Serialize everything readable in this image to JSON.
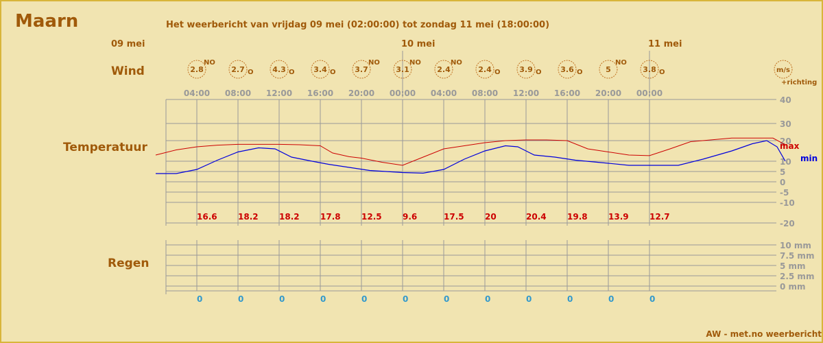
{
  "header": {
    "city": "Maarn",
    "subtitle": "Het weerbericht van vrijdag 09 mei (02:00:00) tot zondag 11 mei (18:00:00)",
    "credit": "AW - met.no weerbericht"
  },
  "dates": [
    {
      "label": "09 mei",
      "slot": -1
    },
    {
      "label": "10 mei",
      "slot": 5
    },
    {
      "label": "11 mei",
      "slot": 11
    }
  ],
  "row_labels": {
    "wind": "Wind",
    "temperature": "Temperatuur",
    "rain": "Regen"
  },
  "wind": {
    "unit_label": "m/s",
    "direction_label": "+richting",
    "items": [
      {
        "speed": "2.8",
        "dir": "NO"
      },
      {
        "speed": "2.7",
        "dir": "O"
      },
      {
        "speed": "4.3",
        "dir": "O"
      },
      {
        "speed": "3.4",
        "dir": "O"
      },
      {
        "speed": "3.7",
        "dir": "NO"
      },
      {
        "speed": "3.1",
        "dir": "NO"
      },
      {
        "speed": "2.4",
        "dir": "NO"
      },
      {
        "speed": "2.4",
        "dir": "O"
      },
      {
        "speed": "3.9",
        "dir": "O"
      },
      {
        "speed": "3.6",
        "dir": "O"
      },
      {
        "speed": "5",
        "dir": "NO"
      },
      {
        "speed": "3.8",
        "dir": "O"
      }
    ]
  },
  "colors": {
    "text": "#a05a0a",
    "max": "#cc0000",
    "min": "#0000dd",
    "rain": "#3399cc",
    "grid": "#999999",
    "wind_circle": "#c07020"
  },
  "chart_data": {
    "type": "line",
    "x": [
      "04:00",
      "08:00",
      "12:00",
      "16:00",
      "20:00",
      "00:00",
      "04:00",
      "08:00",
      "12:00",
      "16:00",
      "20:00",
      "00:00"
    ],
    "ylim": [
      -20,
      40
    ],
    "y_ticks": [
      "40",
      "30",
      "20",
      "10",
      "5",
      "0",
      "-5",
      "-10",
      "-20"
    ],
    "series": [
      {
        "name": "max",
        "values": [
          16.6,
          18.2,
          18.2,
          17.8,
          12.5,
          9.6,
          17.5,
          20,
          20.4,
          19.8,
          13.9,
          12.7
        ]
      },
      {
        "name": "min",
        "values": [
          7,
          14,
          11,
          9,
          6,
          5,
          8,
          15,
          13,
          10,
          8,
          8
        ]
      }
    ],
    "max_labels": [
      "16.6",
      "18.2",
      "18.2",
      "17.8",
      "12.5",
      "9.6",
      "17.5",
      "20",
      "20.4",
      "19.8",
      "13.9",
      "12.7"
    ],
    "max_curve": [
      {
        "t": -1.0,
        "v": 13
      },
      {
        "t": -0.5,
        "v": 15.5
      },
      {
        "t": 0,
        "v": 17
      },
      {
        "t": 0.5,
        "v": 17.8
      },
      {
        "t": 1,
        "v": 18.2
      },
      {
        "t": 1.5,
        "v": 18.2
      },
      {
        "t": 2,
        "v": 18.2
      },
      {
        "t": 2.5,
        "v": 18
      },
      {
        "t": 3,
        "v": 17.5
      },
      {
        "t": 3.3,
        "v": 14
      },
      {
        "t": 3.7,
        "v": 12.2
      },
      {
        "t": 4,
        "v": 11.5
      },
      {
        "t": 4.5,
        "v": 9.5
      },
      {
        "t": 5,
        "v": 8
      },
      {
        "t": 5.5,
        "v": 12
      },
      {
        "t": 6,
        "v": 16
      },
      {
        "t": 6.5,
        "v": 17.5
      },
      {
        "t": 7,
        "v": 19
      },
      {
        "t": 7.5,
        "v": 20
      },
      {
        "t": 8,
        "v": 20.4
      },
      {
        "t": 8.5,
        "v": 20.4
      },
      {
        "t": 9,
        "v": 20
      },
      {
        "t": 9.5,
        "v": 16
      },
      {
        "t": 10,
        "v": 14.5
      },
      {
        "t": 10.5,
        "v": 13
      },
      {
        "t": 11,
        "v": 12.7
      },
      {
        "t": 11.5,
        "v": 16
      },
      {
        "t": 12,
        "v": 19.5
      },
      {
        "t": 13,
        "v": 21.5
      },
      {
        "t": 14,
        "v": 21.5
      },
      {
        "t": 14.3,
        "v": 18
      }
    ],
    "min_curve": [
      {
        "t": -1.0,
        "v": 4
      },
      {
        "t": -0.5,
        "v": 4
      },
      {
        "t": 0,
        "v": 6
      },
      {
        "t": 0.5,
        "v": 10.5
      },
      {
        "t": 1,
        "v": 14.5
      },
      {
        "t": 1.5,
        "v": 16.5
      },
      {
        "t": 1.9,
        "v": 16
      },
      {
        "t": 2.3,
        "v": 12
      },
      {
        "t": 2.8,
        "v": 10
      },
      {
        "t": 3.2,
        "v": 8.5
      },
      {
        "t": 3.7,
        "v": 7
      },
      {
        "t": 4.2,
        "v": 5.5
      },
      {
        "t": 5,
        "v": 4.5
      },
      {
        "t": 5.5,
        "v": 4.2
      },
      {
        "t": 6,
        "v": 6
      },
      {
        "t": 6.5,
        "v": 11
      },
      {
        "t": 7,
        "v": 15
      },
      {
        "t": 7.5,
        "v": 17.5
      },
      {
        "t": 7.8,
        "v": 17
      },
      {
        "t": 8.2,
        "v": 13
      },
      {
        "t": 8.7,
        "v": 12
      },
      {
        "t": 9.2,
        "v": 10.5
      },
      {
        "t": 10,
        "v": 9
      },
      {
        "t": 10.5,
        "v": 8
      },
      {
        "t": 11,
        "v": 8
      },
      {
        "t": 11.7,
        "v": 8
      },
      {
        "t": 12.3,
        "v": 11
      },
      {
        "t": 13,
        "v": 15
      },
      {
        "t": 13.5,
        "v": 18.5
      },
      {
        "t": 13.85,
        "v": 20
      },
      {
        "t": 14.1,
        "v": 17
      },
      {
        "t": 14.3,
        "v": 10
      }
    ]
  },
  "rain": {
    "unit_ticks": [
      "10 mm",
      "7.5 mm",
      "5 mm",
      "2.5 mm",
      "0 mm"
    ],
    "values": [
      "0",
      "0",
      "0",
      "0",
      "0",
      "0",
      "0",
      "0",
      "0",
      "0",
      "0",
      "0"
    ]
  }
}
